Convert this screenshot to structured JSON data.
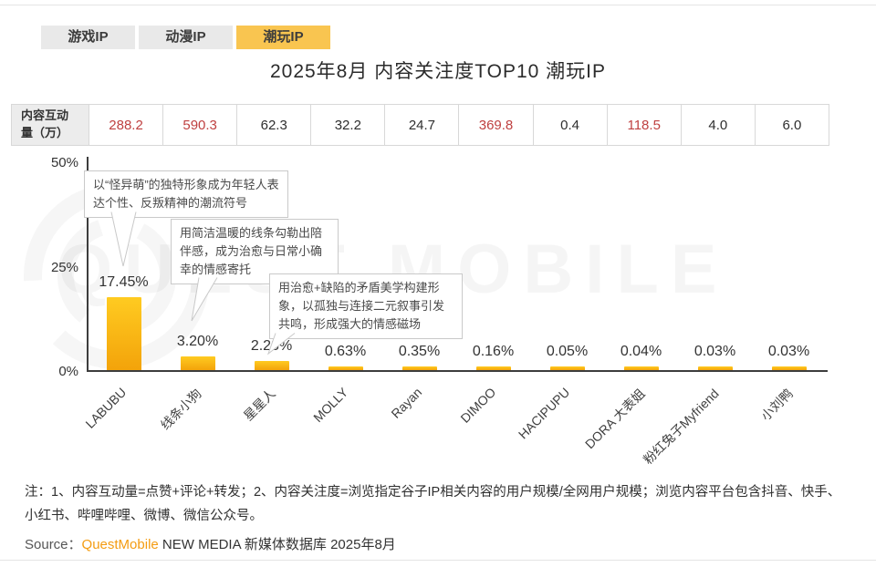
{
  "tabs": [
    {
      "label": "游戏IP",
      "active": false
    },
    {
      "label": "动漫IP",
      "active": false
    },
    {
      "label": "潮玩IP",
      "active": true
    }
  ],
  "title": "2025年8月 内容关注度TOP10 潮玩IP",
  "interaction_row": {
    "header": "内容互动量（万）",
    "values": [
      {
        "text": "288.2",
        "highlight": true
      },
      {
        "text": "590.3",
        "highlight": true
      },
      {
        "text": "62.3",
        "highlight": false
      },
      {
        "text": "32.2",
        "highlight": false
      },
      {
        "text": "24.7",
        "highlight": false
      },
      {
        "text": "369.8",
        "highlight": true
      },
      {
        "text": "0.4",
        "highlight": false
      },
      {
        "text": "118.5",
        "highlight": true
      },
      {
        "text": "4.0",
        "highlight": false
      },
      {
        "text": "6.0",
        "highlight": false
      }
    ]
  },
  "chart_data": {
    "type": "bar",
    "title": "2025年8月 内容关注度TOP10 潮玩IP",
    "categories": [
      "LABUBU",
      "线条小狗",
      "星星人",
      "MOLLY",
      "Rayan",
      "DIMOO",
      "HACIPUPU",
      "DORA 大表姐",
      "粉红兔子Myfriend",
      "小刘鸭"
    ],
    "values": [
      17.45,
      3.2,
      2.28,
      0.63,
      0.35,
      0.16,
      0.05,
      0.04,
      0.03,
      0.03
    ],
    "value_labels": [
      "17.45%",
      "3.20%",
      "2.28%",
      "0.63%",
      "0.35%",
      "0.16%",
      "0.05%",
      "0.04%",
      "0.03%",
      "0.03%"
    ],
    "interaction_volume_wan": [
      288.2,
      590.3,
      62.3,
      32.2,
      24.7,
      369.8,
      0.4,
      118.5,
      4.0,
      6.0
    ],
    "ylabel": "内容关注度",
    "ylim": [
      0,
      50
    ],
    "y_ticks": [
      "50%",
      "25%",
      "0%"
    ],
    "grid": false,
    "legend": "none",
    "bar_colors": {
      "top": "#ffcb21",
      "bottom": "#f3a30a"
    },
    "annotations": [
      {
        "target": "LABUBU",
        "text": "以“怪异萌”的独特形象成为年轻人表达个性、反叛精神的潮流符号"
      },
      {
        "target": "线条小狗",
        "text": "用简洁温暖的线条勾勒出陪伴感，成为治愈与日常小确幸的情感寄托"
      },
      {
        "target": "星星人",
        "text": "用治愈+缺陷的矛盾美学构建形象，以孤独与连接二元叙事引发共鸣，形成强大的情感磁场"
      }
    ]
  },
  "note": "注：1、内容互动量=点赞+评论+转发；2、内容关注度=浏览指定谷子IP相关内容的用户规模/全网用户规模；浏览内容平台包含抖音、快手、小红书、哔哩哔哩、微博、微信公众号。",
  "source": {
    "prefix": "Source：",
    "brand": "QuestMobile",
    "rest": " NEW MEDIA 新媒体数据库 2025年8月"
  },
  "watermark": "QUEST MOBILE"
}
